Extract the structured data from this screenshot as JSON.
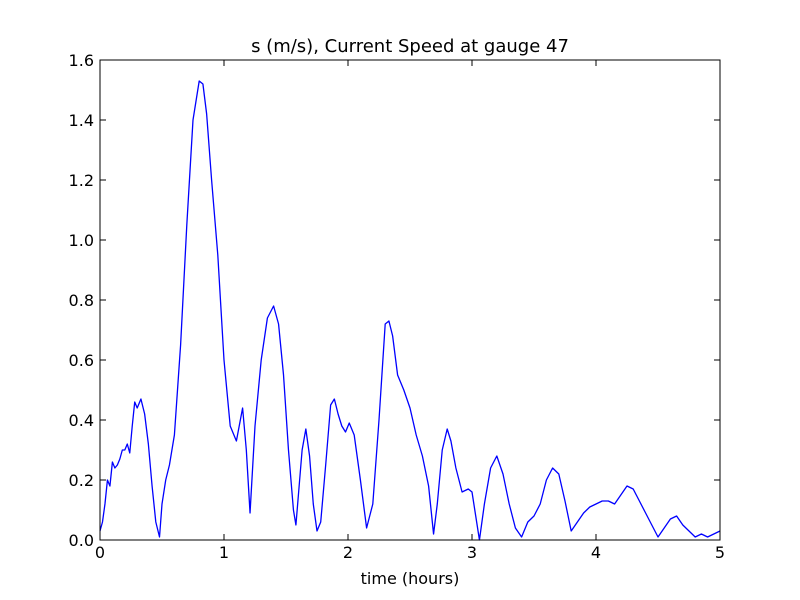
{
  "chart_data": {
    "type": "line",
    "title": "s (m/s), Current Speed at gauge 47",
    "xlabel": "time (hours)",
    "ylabel": "",
    "xlim": [
      0,
      5
    ],
    "ylim": [
      0,
      1.6
    ],
    "xticks": [
      0,
      1,
      2,
      3,
      4,
      5
    ],
    "xtick_labels": [
      "0",
      "1",
      "2",
      "3",
      "4",
      "5"
    ],
    "yticks": [
      0,
      0.2,
      0.4,
      0.6,
      0.8,
      1.0,
      1.2,
      1.4,
      1.6
    ],
    "ytick_labels": [
      "0.0",
      "0.2",
      "0.4",
      "0.6",
      "0.8",
      "1.0",
      "1.2",
      "1.4",
      "1.6"
    ],
    "grid": false,
    "legend": "none",
    "line_color": "#0000ff",
    "zero_line": {
      "y": 0,
      "style": "dashed",
      "color": "#000000"
    },
    "series": [
      {
        "x": [
          0,
          0.02,
          0.04,
          0.06,
          0.08,
          0.1,
          0.12,
          0.14,
          0.16,
          0.18,
          0.2,
          0.22,
          0.24,
          0.26,
          0.28,
          0.3,
          0.33,
          0.36,
          0.39,
          0.42,
          0.45,
          0.48,
          0.5,
          0.53,
          0.56,
          0.6,
          0.65,
          0.7,
          0.75,
          0.8,
          0.83,
          0.86,
          0.9,
          0.95,
          1.0,
          1.05,
          1.1,
          1.15,
          1.18,
          1.21,
          1.25,
          1.3,
          1.35,
          1.4,
          1.44,
          1.48,
          1.52,
          1.56,
          1.58,
          1.6,
          1.63,
          1.66,
          1.69,
          1.72,
          1.75,
          1.78,
          1.82,
          1.86,
          1.89,
          1.92,
          1.95,
          1.98,
          2.01,
          2.05,
          2.1,
          2.15,
          2.2,
          2.25,
          2.3,
          2.33,
          2.36,
          2.4,
          2.45,
          2.5,
          2.55,
          2.6,
          2.65,
          2.69,
          2.72,
          2.76,
          2.8,
          2.83,
          2.87,
          2.92,
          2.97,
          3.0,
          3.03,
          3.06,
          3.1,
          3.15,
          3.2,
          3.25,
          3.3,
          3.35,
          3.4,
          3.45,
          3.5,
          3.55,
          3.6,
          3.65,
          3.7,
          3.75,
          3.8,
          3.85,
          3.9,
          3.95,
          4.0,
          4.05,
          4.1,
          4.15,
          4.2,
          4.25,
          4.3,
          4.35,
          4.4,
          4.45,
          4.5,
          4.55,
          4.6,
          4.65,
          4.7,
          4.75,
          4.8,
          4.85,
          4.9,
          4.95,
          5.0
        ],
        "y": [
          0.03,
          0.06,
          0.12,
          0.2,
          0.18,
          0.26,
          0.24,
          0.25,
          0.27,
          0.3,
          0.3,
          0.32,
          0.29,
          0.38,
          0.46,
          0.44,
          0.47,
          0.42,
          0.32,
          0.18,
          0.06,
          0.01,
          0.12,
          0.2,
          0.25,
          0.35,
          0.65,
          1.05,
          1.4,
          1.53,
          1.52,
          1.42,
          1.2,
          0.95,
          0.6,
          0.38,
          0.33,
          0.44,
          0.3,
          0.09,
          0.38,
          0.6,
          0.74,
          0.78,
          0.72,
          0.55,
          0.3,
          0.1,
          0.05,
          0.15,
          0.3,
          0.37,
          0.28,
          0.12,
          0.03,
          0.06,
          0.25,
          0.45,
          0.47,
          0.42,
          0.38,
          0.36,
          0.39,
          0.35,
          0.2,
          0.04,
          0.12,
          0.4,
          0.72,
          0.73,
          0.68,
          0.55,
          0.5,
          0.44,
          0.35,
          0.28,
          0.18,
          0.02,
          0.12,
          0.3,
          0.37,
          0.33,
          0.24,
          0.16,
          0.17,
          0.16,
          0.08,
          0.0,
          0.12,
          0.24,
          0.28,
          0.22,
          0.12,
          0.04,
          0.01,
          0.06,
          0.08,
          0.12,
          0.2,
          0.24,
          0.22,
          0.13,
          0.03,
          0.06,
          0.09,
          0.11,
          0.12,
          0.13,
          0.13,
          0.12,
          0.15,
          0.18,
          0.17,
          0.13,
          0.09,
          0.05,
          0.01,
          0.04,
          0.07,
          0.08,
          0.05,
          0.03,
          0.01,
          0.02,
          0.01,
          0.02,
          0.03
        ]
      }
    ]
  }
}
